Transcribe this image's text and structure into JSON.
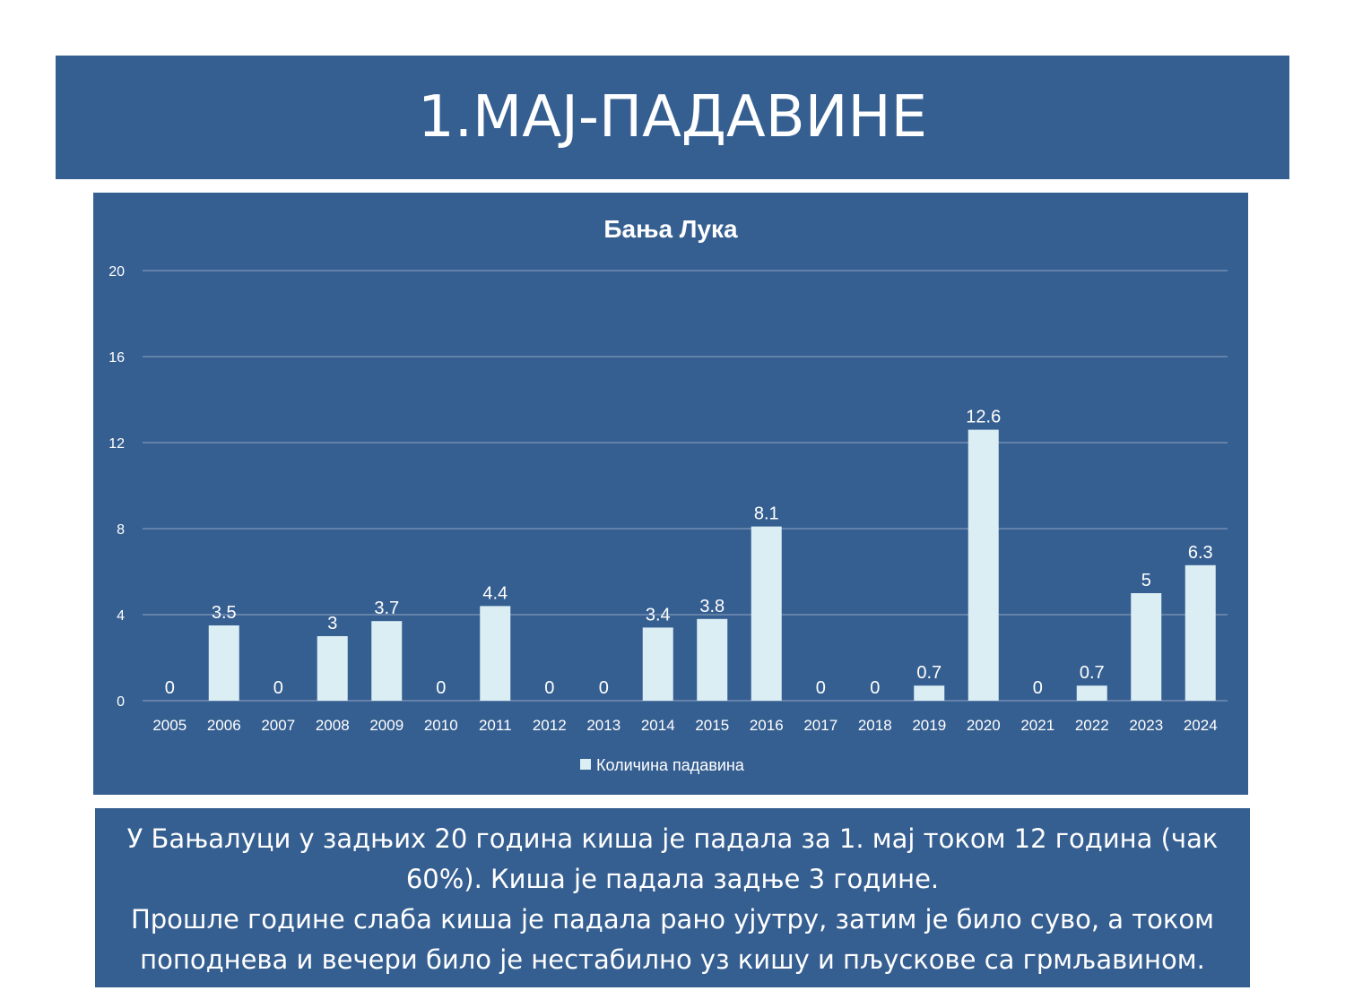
{
  "slide": {
    "title": "1.МАЈ-ПАДАВИНЕ",
    "description": [
      "У Бањалуци у задњих 20 година киша је падала за 1. мај током 12 година (чак 60%). Киша је падала задње 3 године.",
      "Прошле године слаба киша је падала рано ујутру, затим је било суво, а током поподнева и вечери било је нестабилно уз кишу и пљускове са грмљавином."
    ]
  },
  "colors": {
    "panel": "#365f91",
    "bar": "#dbeef4",
    "text": "#ffffff",
    "gridline": "#7f98b8"
  },
  "chart_data": {
    "type": "bar",
    "title": "Бања Лука",
    "xlabel": "",
    "ylabel": "",
    "categories": [
      "2005",
      "2006",
      "2007",
      "2008",
      "2009",
      "2010",
      "2011",
      "2012",
      "2013",
      "2014",
      "2015",
      "2016",
      "2017",
      "2018",
      "2019",
      "2020",
      "2021",
      "2022",
      "2023",
      "2024"
    ],
    "series": [
      {
        "name": "Количина падавина",
        "values": [
          0,
          3.5,
          0,
          3,
          3.7,
          0,
          4.4,
          0,
          0,
          3.4,
          3.8,
          8.1,
          0,
          0,
          0.7,
          12.6,
          0,
          0.7,
          5,
          6.3
        ]
      }
    ],
    "ylim": [
      0,
      20
    ],
    "yticks": [
      0,
      4,
      8,
      12,
      16,
      20
    ],
    "grid": true,
    "legend_position": "bottom",
    "data_labels": true
  }
}
